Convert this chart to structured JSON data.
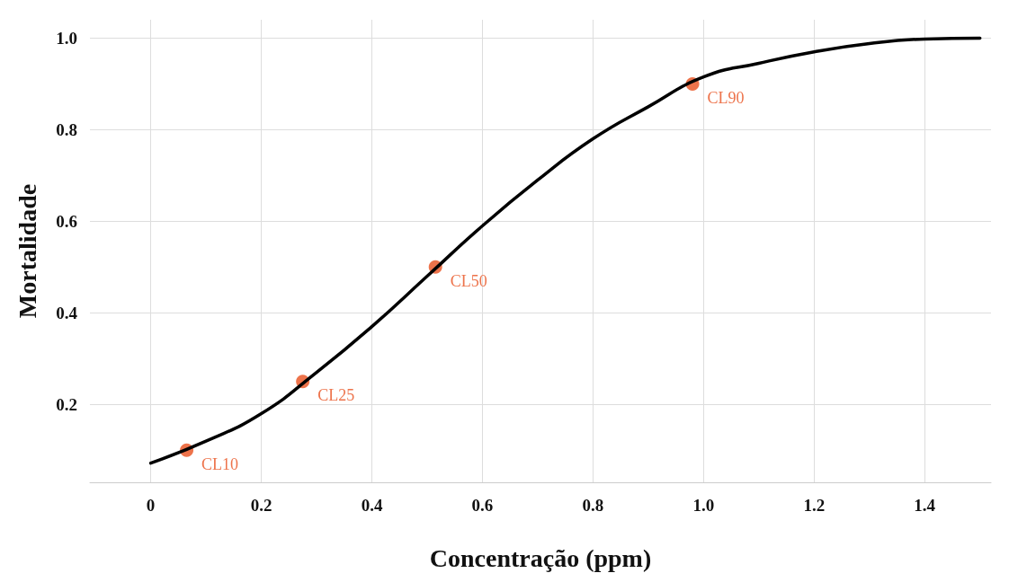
{
  "chart_data": {
    "type": "line",
    "xlabel": "Concentração (ppm)",
    "ylabel": "Mortalidade",
    "series": [
      {
        "color": "#000000",
        "marker": "none",
        "x": [
          0,
          0.1,
          0.2,
          0.3,
          0.4,
          0.5,
          0.6,
          0.7,
          0.8,
          0.9,
          1.0,
          1.1,
          1.2,
          1.3,
          1.4,
          1.5
        ],
        "values": [
          0.072,
          0.12,
          0.18,
          0.27,
          0.37,
          0.48,
          0.59,
          0.69,
          0.78,
          0.85,
          0.915,
          0.945,
          0.97,
          0.988,
          0.998,
          1.0
        ]
      },
      {
        "type": "scatter",
        "marker": "circle",
        "color": "#e8501e",
        "x": [
          0.065,
          0.275,
          0.515,
          0.98
        ],
        "values": [
          0.1,
          0.25,
          0.5,
          0.9
        ],
        "value_labels": [
          "CL10",
          "CL25",
          "CL50",
          "CL90"
        ]
      }
    ],
    "xlim": [
      -0.11,
      1.52
    ],
    "xticks": [
      0,
      0.2,
      0.4,
      0.6,
      0.8,
      {
        "value": 1,
        "label": "1.0"
      },
      1.2,
      1.4
    ],
    "ylim": [
      0.03,
      1.04
    ],
    "yticks": [
      0.2,
      0.4,
      0.6,
      0.8,
      {
        "value": 1,
        "label": "1.0"
      }
    ],
    "grid": true,
    "line_style": "solid"
  }
}
